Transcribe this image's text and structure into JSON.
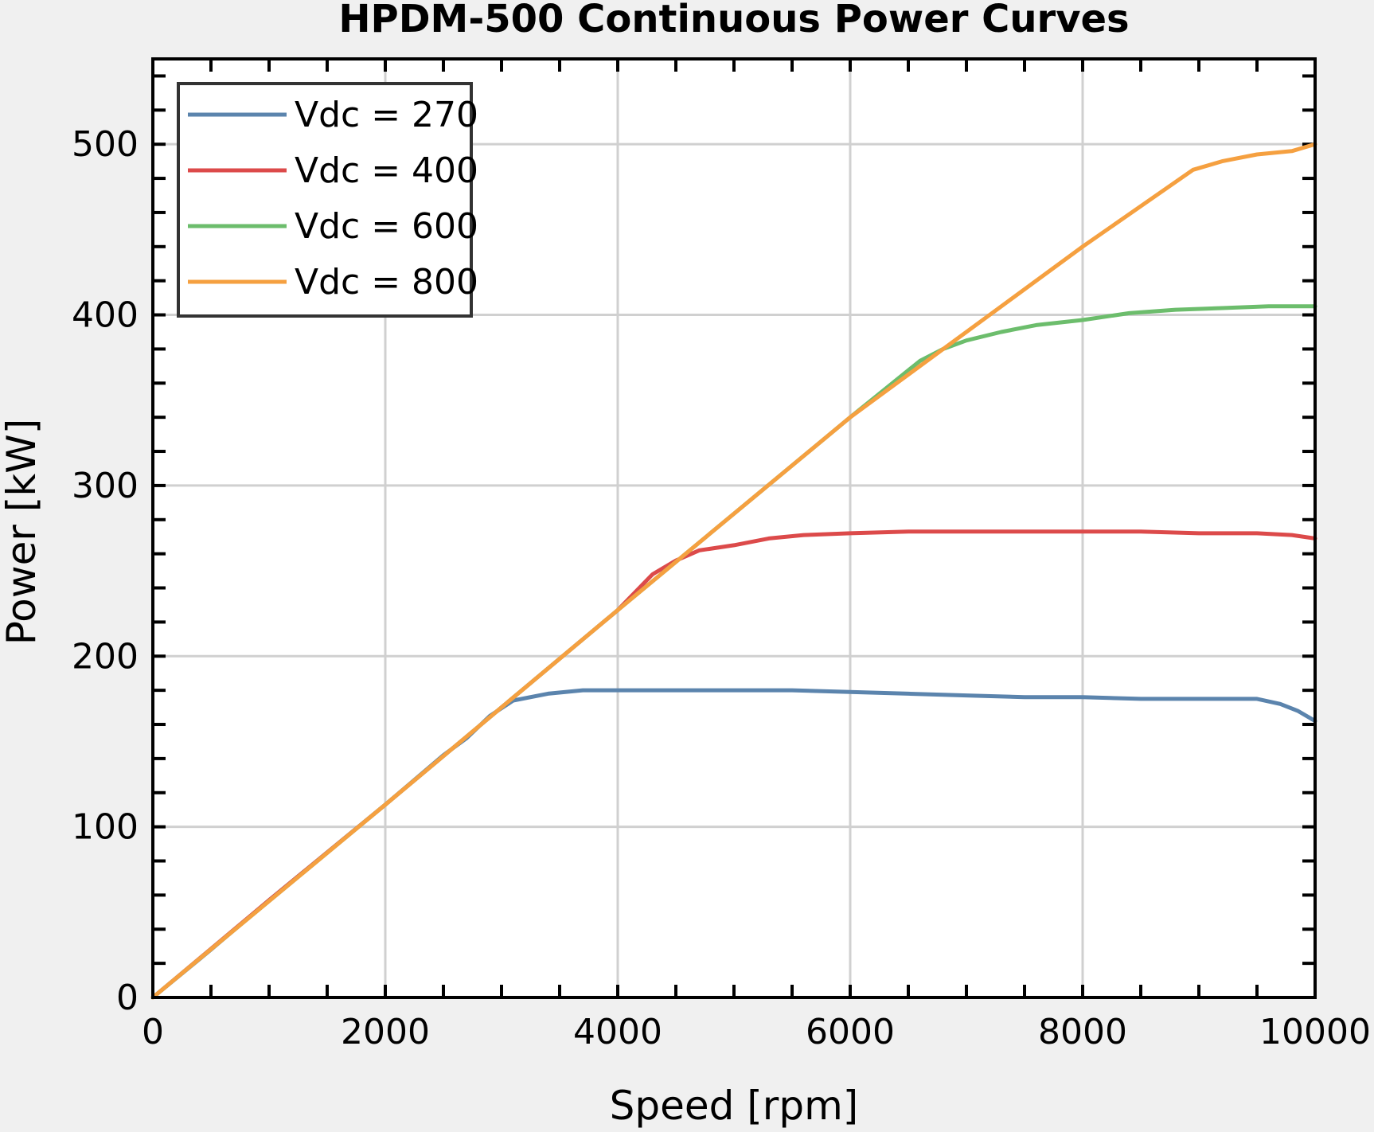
{
  "chart_data": {
    "type": "line",
    "title": "HPDM-500 Continuous Power Curves",
    "xlabel": "Speed [rpm]",
    "ylabel": "Power [kW]",
    "xlim": [
      0,
      10000
    ],
    "ylim": [
      0,
      550
    ],
    "xticks": [
      0,
      2000,
      4000,
      6000,
      8000,
      10000
    ],
    "yticks": [
      0,
      100,
      200,
      300,
      400,
      500
    ],
    "grid": true,
    "legend_position": "top-left",
    "series": [
      {
        "name": "Vdc = 270",
        "color": "#5b84ad",
        "x": [
          0,
          500,
          1000,
          1500,
          2000,
          2500,
          2700,
          2900,
          3100,
          3400,
          3700,
          4000,
          4500,
          5000,
          5500,
          6000,
          6500,
          7000,
          7500,
          8000,
          8500,
          9000,
          9500,
          9700,
          9850,
          10000
        ],
        "y": [
          0,
          28,
          57,
          85,
          113,
          142,
          152,
          165,
          174,
          178,
          180,
          180,
          180,
          180,
          180,
          179,
          178,
          177,
          176,
          176,
          175,
          175,
          175,
          172,
          168,
          162
        ]
      },
      {
        "name": "Vdc = 400",
        "color": "#dc4a4a",
        "x": [
          0,
          1000,
          2000,
          3000,
          4000,
          4300,
          4500,
          4700,
          5000,
          5300,
          5600,
          6000,
          6500,
          7000,
          7500,
          8000,
          8500,
          9000,
          9500,
          9800,
          10000
        ],
        "y": [
          0,
          57,
          113,
          170,
          227,
          248,
          256,
          262,
          265,
          269,
          271,
          272,
          273,
          273,
          273,
          273,
          273,
          272,
          272,
          271,
          269
        ]
      },
      {
        "name": "Vdc = 600",
        "color": "#6cbd6c",
        "x": [
          0,
          2000,
          4000,
          6000,
          6600,
          6800,
          7000,
          7300,
          7600,
          8000,
          8400,
          8800,
          9200,
          9600,
          10000
        ],
        "y": [
          0,
          113,
          227,
          340,
          373,
          380,
          385,
          390,
          394,
          397,
          401,
          403,
          404,
          405,
          405
        ]
      },
      {
        "name": "Vdc = 800",
        "color": "#f5a040",
        "x": [
          0,
          2000,
          4000,
          6000,
          8000,
          8950,
          9200,
          9500,
          9800,
          10000
        ],
        "y": [
          0,
          113,
          227,
          340,
          440,
          485,
          490,
          494,
          496,
          500
        ]
      }
    ]
  }
}
